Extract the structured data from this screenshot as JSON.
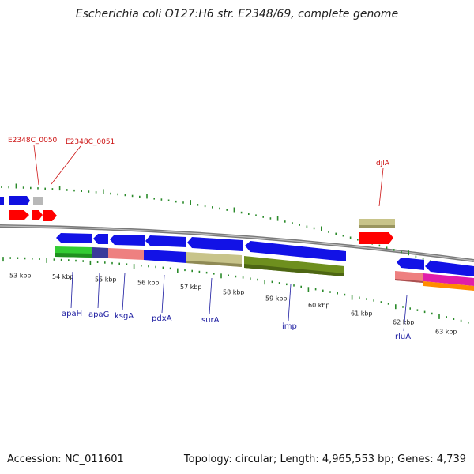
{
  "title": "Escherichia coli O127:H6 str. E2348/69, complete genome",
  "footer": {
    "accession": "Accession: NC_011601",
    "summary": "Topology: circular; Length: 4,965,553 bp; Genes: 4,739"
  },
  "colors": {
    "forward_cds": "#1010e0",
    "reverse_cds": "#ff0000",
    "other_feature": "#b0b0b0",
    "backbone": "#888888",
    "ticks": "#2a8a2a",
    "gene_label": "#1a1aa0",
    "locus_label": "#cc1111"
  },
  "kbp_labels": [
    "53 kbp",
    "54 kbp",
    "55 kbp",
    "56 kbp",
    "57 kbp",
    "58 kbp",
    "59 kbp",
    "60 kbp",
    "61 kbp",
    "62 kbp",
    "63 kbp"
  ],
  "blue_gene_labels": [
    "apaH",
    "apaG",
    "ksgA",
    "pdxA",
    "surA",
    "imp",
    "rluA"
  ],
  "red_gene_labels": [
    "E2348C_0050",
    "E2348C_0051",
    "djlA"
  ]
}
